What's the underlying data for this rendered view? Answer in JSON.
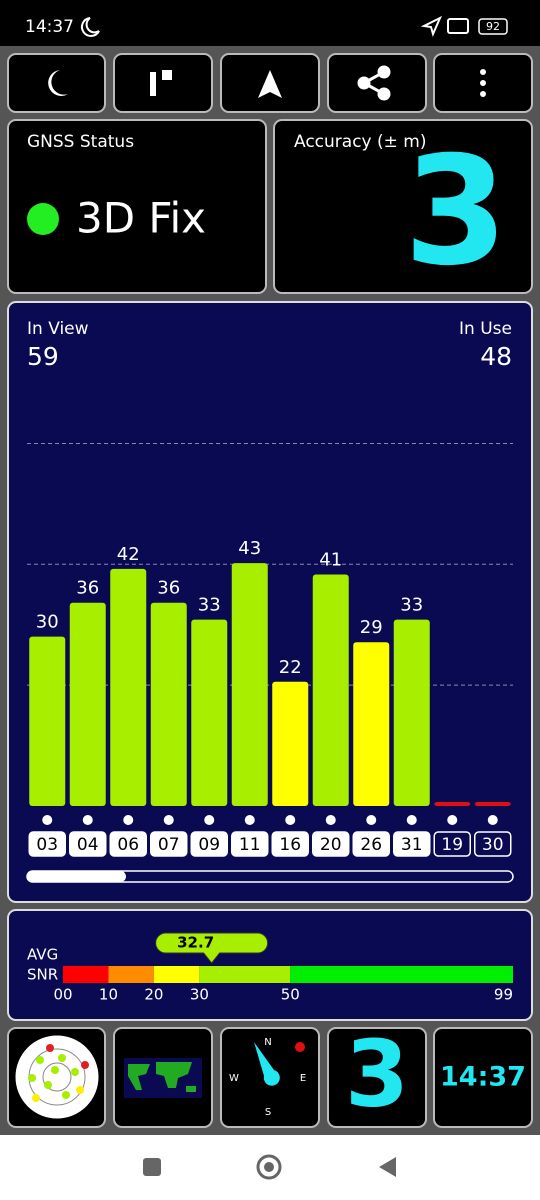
{
  "status_bar": {
    "time": "14:37",
    "battery": "92"
  },
  "gnss_status": {
    "title": "GNSS Status",
    "value": "3D Fix"
  },
  "accuracy": {
    "title": "Accuracy (± m)",
    "value": "3"
  },
  "chart_data": {
    "type": "bar",
    "in_view_label": "In View",
    "in_view": "59",
    "in_use_label": "In Use",
    "in_use": "48",
    "categories": [
      "03",
      "04",
      "06",
      "07",
      "09",
      "11",
      "16",
      "20",
      "26",
      "31",
      "19",
      "30"
    ],
    "values": [
      30,
      36,
      42,
      36,
      33,
      43,
      22,
      41,
      29,
      33,
      0,
      0
    ],
    "colors": [
      "#a8ee00",
      "#a8ee00",
      "#a8ee00",
      "#a8ee00",
      "#a8ee00",
      "#a8ee00",
      "#ffff00",
      "#a8ee00",
      "#ffff00",
      "#a8ee00",
      "#e01010",
      "#e01010"
    ],
    "used": [
      true,
      true,
      true,
      true,
      true,
      true,
      true,
      true,
      true,
      true,
      false,
      false
    ],
    "ylim": [
      0,
      85
    ],
    "grid_lines": [
      21.4,
      42.8,
      64.2
    ]
  },
  "snr": {
    "avg_label": "AVG",
    "snr_label": "SNR",
    "average": 32.7,
    "range": [
      0,
      99
    ],
    "ticks": [
      {
        "value": 0,
        "label": "00"
      },
      10,
      20,
      30,
      50,
      99
    ],
    "segments": [
      {
        "from": 0,
        "to": 10,
        "color": "#ff0000"
      },
      {
        "from": 10,
        "to": 20,
        "color": "#ff8c00"
      },
      {
        "from": 20,
        "to": 30,
        "color": "#ffff00"
      },
      {
        "from": 30,
        "to": 50,
        "color": "#a8ee00"
      },
      {
        "from": 50,
        "to": 99,
        "color": "#00ee00"
      }
    ]
  },
  "bottom_tiles": {
    "compass": [
      "N",
      "E",
      "S",
      "W"
    ],
    "accuracy": "3",
    "clock": "14:37"
  }
}
